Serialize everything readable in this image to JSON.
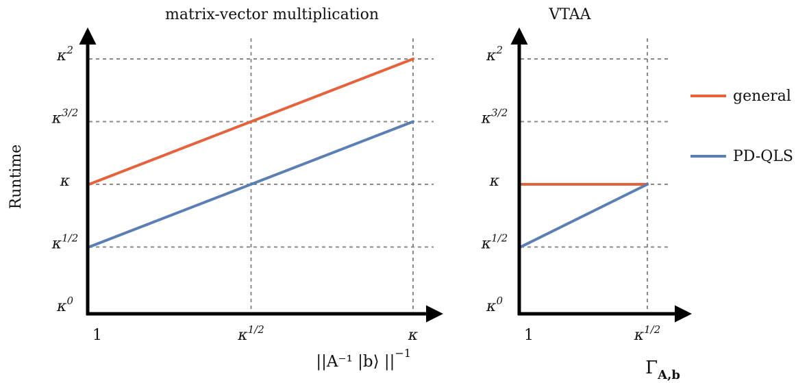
{
  "ylabel": "Runtime",
  "colors": {
    "general": "#e5623d",
    "pdqls": "#5b7fb5"
  },
  "legend": [
    {
      "name": "general",
      "color": "#e5623d"
    },
    {
      "name": "PD-QLS",
      "color": "#5b7fb5"
    }
  ],
  "y_ticks": [
    {
      "exp": 0,
      "base": "κ",
      "sup": "0"
    },
    {
      "exp": 0.5,
      "base": "κ",
      "sup": "1/2"
    },
    {
      "exp": 1,
      "base": "κ",
      "sup": ""
    },
    {
      "exp": 1.5,
      "base": "κ",
      "sup": "3/2"
    },
    {
      "exp": 2,
      "base": "κ",
      "sup": "2"
    }
  ],
  "chart_data": [
    {
      "type": "line",
      "title": "matrix-vector multiplication",
      "xlabel": {
        "text": "||A⁻¹ |b⟩ ||",
        "sup": "−1"
      },
      "x_scale": "log κ",
      "y_scale": "log κ",
      "x_ticks": [
        {
          "exp": 0,
          "base": "1",
          "sup": ""
        },
        {
          "exp": 0.5,
          "base": "κ",
          "sup": "1/2"
        },
        {
          "exp": 1,
          "base": "κ",
          "sup": ""
        }
      ],
      "xlim_exp": [
        0,
        1
      ],
      "ylim_exp": [
        0,
        2
      ],
      "grid": true,
      "series": [
        {
          "name": "general",
          "x_exp": [
            0,
            1
          ],
          "y_exp": [
            1,
            2
          ]
        },
        {
          "name": "PD-QLS",
          "x_exp": [
            0,
            1
          ],
          "y_exp": [
            0.5,
            1.5
          ]
        }
      ]
    },
    {
      "type": "line",
      "title": "VTAA",
      "xlabel": {
        "text": "Γ",
        "sub": "A,b"
      },
      "x_scale": "log κ",
      "y_scale": "log κ",
      "x_ticks": [
        {
          "exp": 0,
          "base": "1",
          "sup": ""
        },
        {
          "exp": 0.5,
          "base": "κ",
          "sup": "1/2"
        }
      ],
      "xlim_exp": [
        0,
        0.5
      ],
      "ylim_exp": [
        0,
        2
      ],
      "grid": true,
      "series": [
        {
          "name": "general",
          "x_exp": [
            0,
            0.5
          ],
          "y_exp": [
            1,
            1
          ]
        },
        {
          "name": "PD-QLS",
          "x_exp": [
            0,
            0.5
          ],
          "y_exp": [
            0.5,
            1
          ]
        }
      ]
    }
  ]
}
